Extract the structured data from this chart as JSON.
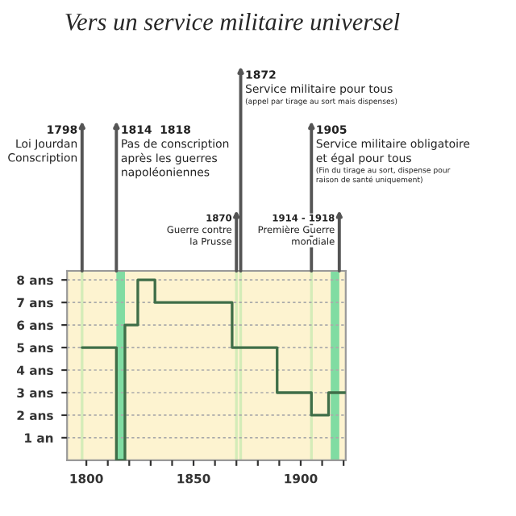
{
  "chart_data": {
    "type": "step",
    "title": "Vers un service militaire universel",
    "x": [
      1798,
      1814,
      1818,
      1824,
      1832,
      1868,
      1889,
      1905,
      1913,
      1921
    ],
    "series": [
      {
        "color": "#3f6e48",
        "values": [
          5,
          0,
          6,
          8,
          7,
          5,
          3,
          2,
          3,
          3
        ]
      }
    ],
    "xlim": [
      1791,
      1921
    ],
    "xticks": [
      {
        "value": 1800,
        "label": "1800"
      },
      {
        "value": 1810,
        "label": null
      },
      {
        "value": 1820,
        "label": null
      },
      {
        "value": 1830,
        "label": null
      },
      {
        "value": 1840,
        "label": null
      },
      {
        "value": 1850,
        "label": "1850"
      },
      {
        "value": 1860,
        "label": null
      },
      {
        "value": 1870,
        "label": null
      },
      {
        "value": 1880,
        "label": null
      },
      {
        "value": 1890,
        "label": null
      },
      {
        "value": 1900,
        "label": "1900"
      },
      {
        "value": 1910,
        "label": null
      },
      {
        "value": 1920,
        "label": null
      }
    ],
    "ylim": [
      0,
      8.4
    ],
    "yticks": [
      {
        "value": 1,
        "label": "1 an"
      },
      {
        "value": 2,
        "label": "2 ans"
      },
      {
        "value": 3,
        "label": "3 ans"
      },
      {
        "value": 4,
        "label": "4 ans"
      },
      {
        "value": 5,
        "label": "5 ans"
      },
      {
        "value": 6,
        "label": "6 ans"
      },
      {
        "value": 7,
        "label": "7 ans"
      },
      {
        "value": 8,
        "label": "8 ans"
      }
    ],
    "grid": "y",
    "ref_lines": [
      {
        "axis": "x",
        "value": 1798,
        "color": "#d4ecb8",
        "label": "1798\nLoi Jourdan\nConscription"
      },
      {
        "axis": "x",
        "value": 1870,
        "color": "#d4ecb8",
        "label": "1870\nGuerre contre\nla Prusse"
      },
      {
        "axis": "x",
        "value": 1872,
        "color": "#d4ecb8",
        "label": "1872\nService militaire pour tous\n(appel par tirage au sort mais dispenses)"
      },
      {
        "axis": "x",
        "value": 1905,
        "color": "#d4ecb8",
        "label": "1905\nService militaire obligatoire\net égal pour tous\n(Fin du tirage au sort, dispense pour\nraison de santé uniquement)"
      }
    ],
    "bands": [
      {
        "axis": "x",
        "from": 1814,
        "to": 1818,
        "color": "#80dca2",
        "label": "1814  1818\nPas de conscription\naprès les guerres\nnapoléoniennes"
      },
      {
        "axis": "x",
        "from": 1914,
        "to": 1918,
        "color": "#80dca2",
        "label": "1914 - 1918\nPremière Guerre\nmondiale"
      }
    ]
  }
}
